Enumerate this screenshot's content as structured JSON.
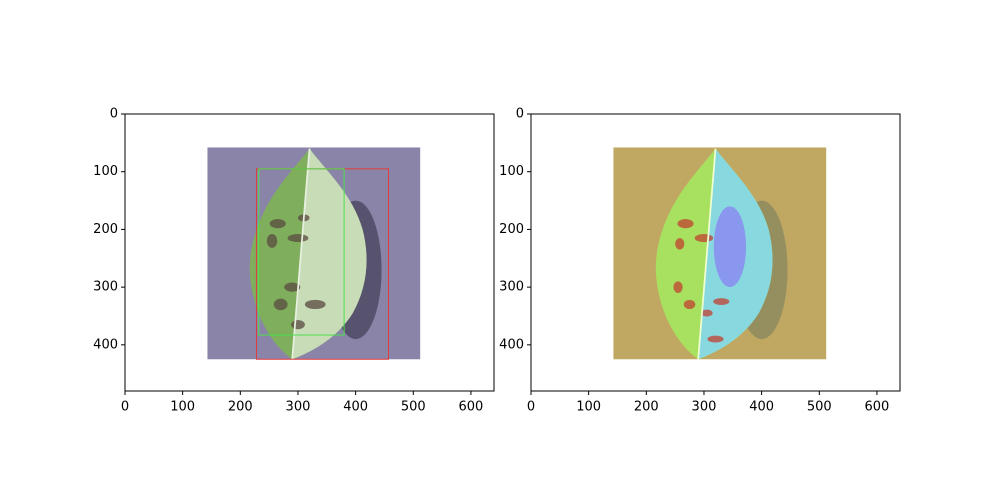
{
  "chart_data": [
    {
      "type": "image",
      "xlim": [
        0,
        640
      ],
      "ylim": [
        480,
        0
      ],
      "xticks": [
        0,
        100,
        200,
        300,
        400,
        500,
        600
      ],
      "yticks": [
        0,
        100,
        200,
        300,
        400
      ],
      "image": {
        "x": [
          143,
          512
        ],
        "y": [
          58,
          425
        ],
        "style": "photo"
      },
      "boxes": [
        {
          "color": "#e03c3c",
          "x": [
            228,
            457
          ],
          "y": [
            95,
            425
          ]
        },
        {
          "color": "#4ce04c",
          "x": [
            232,
            380
          ],
          "y": [
            95,
            383
          ]
        }
      ]
    },
    {
      "type": "image",
      "xlim": [
        0,
        640
      ],
      "ylim": [
        480,
        0
      ],
      "xticks": [
        0,
        100,
        200,
        300,
        400,
        500,
        600
      ],
      "yticks": [
        0,
        100,
        200,
        300,
        400
      ],
      "image": {
        "x": [
          143,
          512
        ],
        "y": [
          58,
          425
        ],
        "style": "heatmap"
      },
      "boxes": []
    }
  ]
}
